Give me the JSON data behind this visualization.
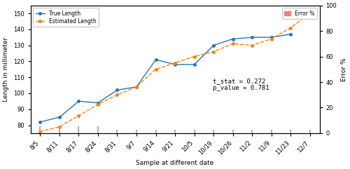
{
  "x_labels": [
    "8/5",
    "8/11",
    "8/17",
    "8/24",
    "8/31",
    "9/7",
    "9/14",
    "9/21",
    "10/5",
    "10/19",
    "10/26",
    "11/2",
    "11/9",
    "11/23",
    "12/7"
  ],
  "true_length": [
    82,
    85,
    95,
    94,
    102,
    104,
    121,
    118,
    118,
    130,
    134,
    135,
    135,
    137,
    null
  ],
  "estimated_length": [
    76,
    79,
    86,
    93,
    99,
    104,
    115,
    119,
    123,
    126,
    131,
    130,
    134,
    141,
    150
  ],
  "true_color": "#1f77b4",
  "estimated_color": "#ff7f0e",
  "error_color": "#f08080",
  "bg_color": "#ffffff",
  "plot_bg_color": "#ffffff",
  "ylim_left": [
    75,
    155
  ],
  "ylim_right": [
    0,
    100
  ],
  "yticks_left": [
    80,
    90,
    100,
    110,
    120,
    130,
    140,
    150
  ],
  "yticks_right": [
    0,
    20,
    40,
    60,
    80,
    100
  ],
  "xlabel": "Sample at different date",
  "ylabel_left": "Length in millimeter",
  "ylabel_right": "Error %",
  "annotation": "t_stat = 0.272\np_value = 0.781",
  "error_bar_positions": [
    0,
    1,
    2,
    3,
    4,
    5,
    6,
    7,
    8,
    9,
    10,
    11,
    12,
    13,
    14
  ],
  "error_bar_heights_small": [
    0,
    1,
    2,
    3,
    5
  ],
  "figsize": [
    5.0,
    2.41
  ],
  "dpi": 100
}
